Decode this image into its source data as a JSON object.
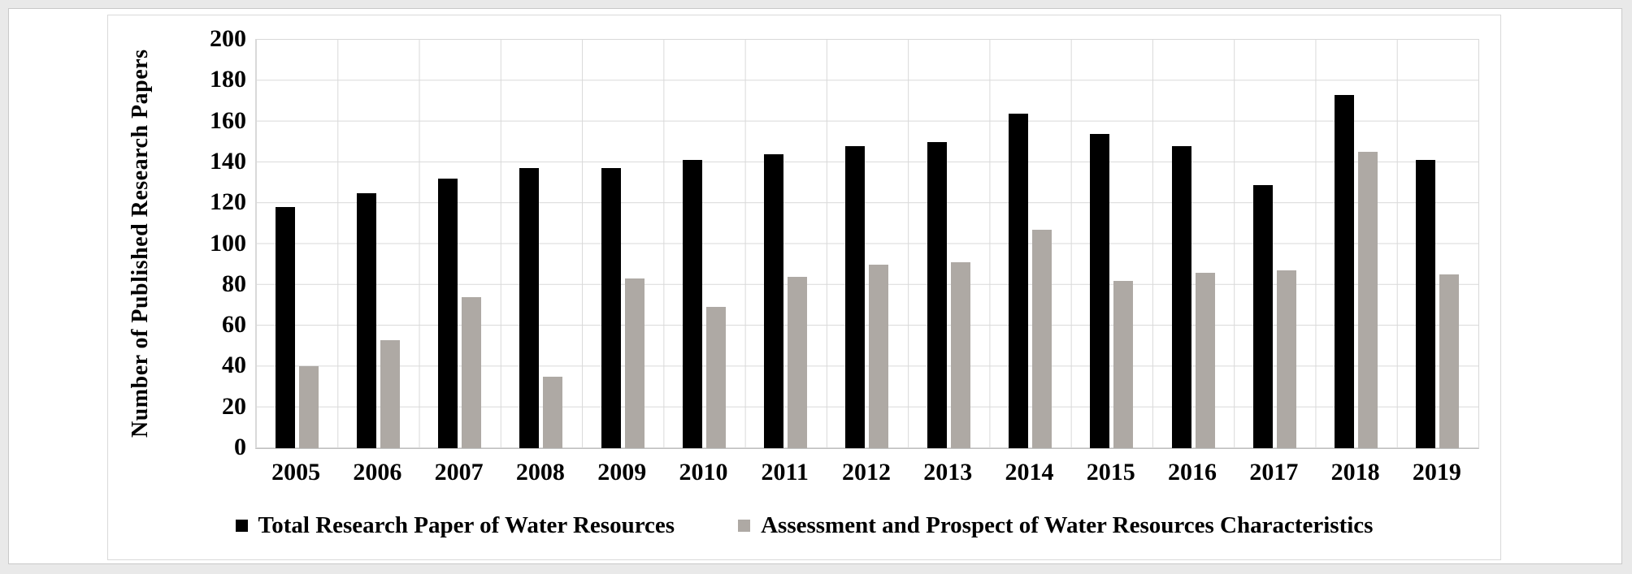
{
  "page": {
    "background": "#e9e9e9",
    "panel_border": "#c9c9c9",
    "chart_border": "#d9d9d9"
  },
  "chart_data": {
    "type": "bar",
    "title": "",
    "xlabel": "",
    "ylabel": "Number of Published Research Papers",
    "categories": [
      "2005",
      "2006",
      "2007",
      "2008",
      "2009",
      "2010",
      "2011",
      "2012",
      "2013",
      "2014",
      "2015",
      "2016",
      "2017",
      "2018",
      "2019"
    ],
    "series": [
      {
        "name": "Total Research Paper of Water Resources",
        "color": "#000000",
        "values": [
          118,
          125,
          132,
          137,
          137,
          141,
          144,
          148,
          150,
          164,
          154,
          148,
          129,
          173,
          141
        ]
      },
      {
        "name": "Assessment and Prospect of Water Resources Characteristics",
        "color": "#aea9a4",
        "values": [
          40,
          53,
          74,
          35,
          83,
          69,
          84,
          90,
          91,
          107,
          82,
          86,
          87,
          145,
          85
        ]
      }
    ],
    "ylim": [
      0,
      200
    ],
    "ytick_step": 20,
    "yticks": [
      0,
      20,
      40,
      60,
      80,
      100,
      120,
      140,
      160,
      180,
      200
    ],
    "grid": true,
    "gridline_color": "#d9d9d9",
    "legend_position": "bottom"
  }
}
